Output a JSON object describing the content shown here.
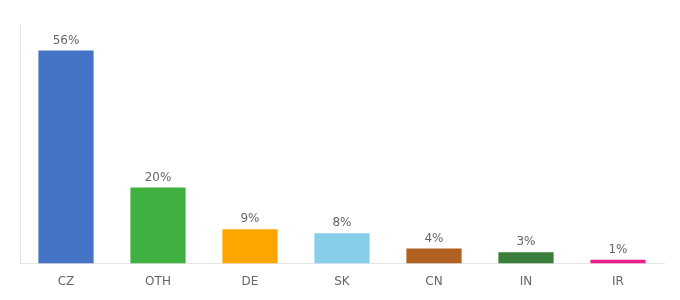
{
  "chart_data": {
    "type": "bar",
    "categories": [
      "CZ",
      "OTH",
      "DE",
      "SK",
      "CN",
      "IN",
      "IR"
    ],
    "values": [
      56,
      20,
      9,
      8,
      4,
      3,
      1
    ],
    "value_labels": [
      "56%",
      "20%",
      "9%",
      "8%",
      "4%",
      "3%",
      "1%"
    ],
    "colors": [
      "#4472c4",
      "#40b040",
      "#ffa500",
      "#87ceeb",
      "#b06020",
      "#3a7d3a",
      "#e91e8c"
    ],
    "ylim": [
      0,
      63
    ],
    "grid": false,
    "data_labels": true,
    "tick_labels": "x"
  }
}
